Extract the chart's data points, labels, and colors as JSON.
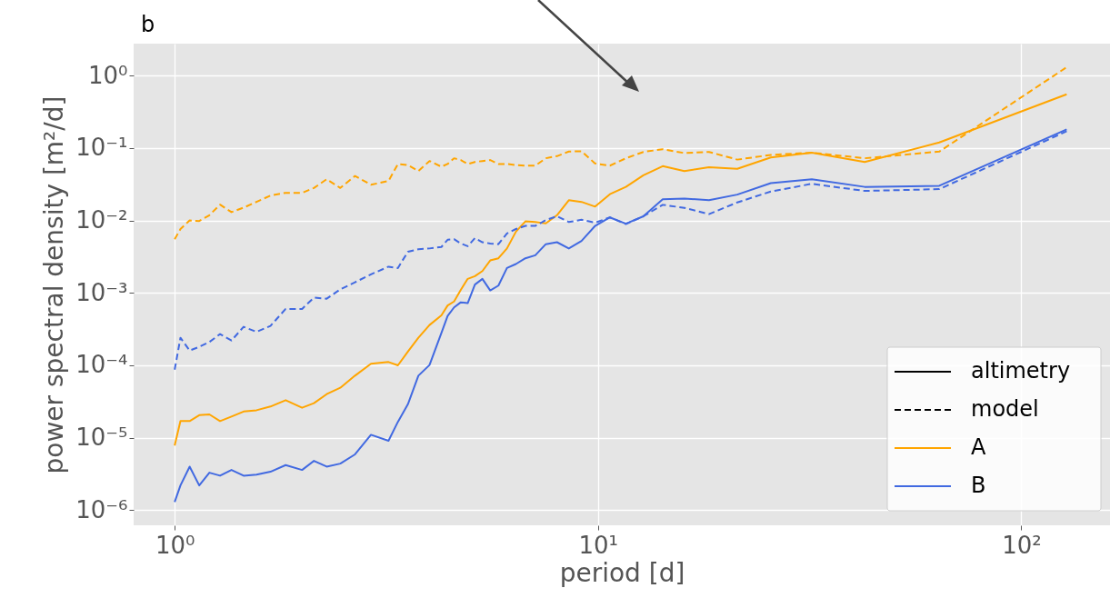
{
  "chart_data": {
    "type": "line",
    "title": "b",
    "xlabel": "period [d]",
    "ylabel": "power spectral density [m²/d]",
    "log": "xy",
    "grid": true,
    "legend": "bottom right",
    "annotations": [
      "altimetry",
      "model"
    ],
    "x": [
      1,
      1.032,
      1.085,
      1.143,
      1.208,
      1.28,
      1.362,
      1.455,
      1.561,
      1.684,
      1.829,
      2,
      2.133,
      2.286,
      2.462,
      2.667,
      2.909,
      3.2,
      3.368,
      3.556,
      3.765,
      4,
      4.267,
      4.414,
      4.571,
      4.741,
      4.923,
      5.12,
      5.333,
      5.565,
      5.818,
      6.095,
      6.4,
      6.737,
      7.111,
      7.529,
      8,
      8.533,
      9.143,
      9.846,
      10.67,
      11.64,
      12.8,
      14.22,
      16,
      18.29,
      21.33,
      25.6,
      32,
      42.67,
      64,
      128
    ],
    "xlim": [
      0.8,
      162
    ],
    "ylim": [
      6.2e-07,
      2.75
    ],
    "xticks": [
      {
        "value": 1,
        "label": "10⁰"
      },
      {
        "value": 10,
        "label": "10¹"
      },
      {
        "value": 100,
        "label": "10²"
      }
    ],
    "yticks": [
      {
        "value": 1e-06,
        "label": "10⁻⁶"
      },
      {
        "value": 1e-05,
        "label": "10⁻⁵"
      },
      {
        "value": 0.0001,
        "label": "10⁻⁴"
      },
      {
        "value": 0.001,
        "label": "10⁻³"
      },
      {
        "value": 0.01,
        "label": "10⁻²"
      },
      {
        "value": 0.1,
        "label": "10⁻¹"
      },
      {
        "value": 1,
        "label": "10⁰"
      }
    ],
    "series": [
      {
        "name": "A",
        "line_style": "solid",
        "color": "#ffa500",
        "values": [
          7.8e-06,
          1.7e-05,
          1.7e-05,
          2.05e-05,
          2.1e-05,
          1.7e-05,
          1.96e-05,
          2.3e-05,
          2.4e-05,
          2.7e-05,
          3.3e-05,
          2.6e-05,
          3e-05,
          4e-05,
          4.9e-05,
          7.2e-05,
          0.000105,
          0.000111,
          0.0001,
          0.000155,
          0.00024,
          0.00036,
          0.00049,
          0.00067,
          0.00076,
          0.0011,
          0.00156,
          0.0017,
          0.002,
          0.0028,
          0.003,
          0.0041,
          0.007,
          0.0097,
          0.0095,
          0.0091,
          0.0118,
          0.019,
          0.018,
          0.0155,
          0.023,
          0.029,
          0.042,
          0.056,
          0.048,
          0.054,
          0.0515,
          0.074,
          0.086,
          0.064,
          0.119,
          0.55
        ]
      },
      {
        "line_style": "dashed",
        "color": "#ffa500",
        "values": [
          0.0055,
          0.0076,
          0.01,
          0.0098,
          0.0118,
          0.0165,
          0.013,
          0.015,
          0.018,
          0.022,
          0.024,
          0.024,
          0.028,
          0.037,
          0.028,
          0.041,
          0.031,
          0.035,
          0.06,
          0.058,
          0.048,
          0.066,
          0.055,
          0.06,
          0.072,
          0.068,
          0.06,
          0.064,
          0.066,
          0.068,
          0.06,
          0.06,
          0.058,
          0.057,
          0.057,
          0.072,
          0.077,
          0.089,
          0.09,
          0.061,
          0.057,
          0.072,
          0.088,
          0.096,
          0.085,
          0.088,
          0.069,
          0.08,
          0.086,
          0.072,
          0.089,
          1.3
        ]
      },
      {
        "name": "B",
        "line_style": "solid",
        "color": "#4169e1",
        "values": [
          1.3e-06,
          2.2e-06,
          4e-06,
          2.2e-06,
          3.3e-06,
          3e-06,
          3.6e-06,
          3e-06,
          3.1e-06,
          3.4e-06,
          4.2e-06,
          3.6e-06,
          4.8e-06,
          4e-06,
          4.4e-06,
          5.9e-06,
          1.1e-05,
          9.1e-06,
          1.66e-05,
          2.9e-05,
          7.2e-05,
          0.000101,
          0.00028,
          0.00048,
          0.00063,
          0.00074,
          0.00072,
          0.0013,
          0.00156,
          0.00108,
          0.00126,
          0.0022,
          0.0025,
          0.003,
          0.0033,
          0.0047,
          0.005,
          0.0041,
          0.0052,
          0.0084,
          0.011,
          0.009,
          0.0114,
          0.0196,
          0.02,
          0.019,
          0.0227,
          0.0327,
          0.037,
          0.029,
          0.03,
          0.18
        ]
      },
      {
        "line_style": "dashed",
        "color": "#4169e1",
        "values": [
          8.7e-05,
          0.00024,
          0.00016,
          0.00018,
          0.00021,
          0.00027,
          0.00022,
          0.00034,
          0.00029,
          0.00035,
          0.0006,
          0.0006,
          0.00086,
          0.00083,
          0.00112,
          0.0014,
          0.0018,
          0.0023,
          0.0022,
          0.0037,
          0.004,
          0.0041,
          0.0043,
          0.0054,
          0.0055,
          0.0048,
          0.0044,
          0.0057,
          0.005,
          0.0048,
          0.0047,
          0.0066,
          0.0076,
          0.0084,
          0.0084,
          0.0101,
          0.0114,
          0.0095,
          0.0102,
          0.0093,
          0.011,
          0.0089,
          0.0114,
          0.0164,
          0.0149,
          0.0122,
          0.0177,
          0.025,
          0.032,
          0.0255,
          0.027,
          0.17
        ]
      }
    ]
  }
}
